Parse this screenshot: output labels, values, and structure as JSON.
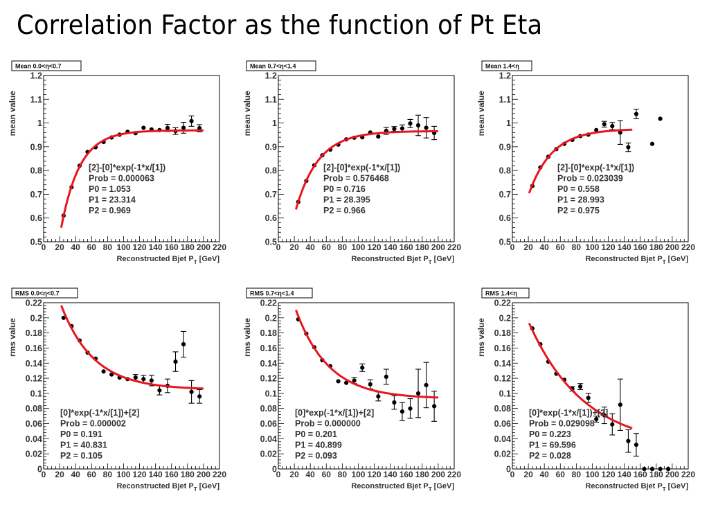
{
  "page_title": "Correlation Factor as the function of Pt Eta",
  "chart_data": [
    {
      "type": "scatter",
      "title": "Mean 0.0<η<0.7",
      "xlabel": "Reconstructed Bjet P_T [GeV]",
      "ylabel": "mean value",
      "xlim": [
        0,
        220
      ],
      "ylim": [
        0.5,
        1.2
      ],
      "xticks": [
        0,
        20,
        40,
        60,
        80,
        100,
        120,
        140,
        160,
        180,
        200,
        220
      ],
      "yticks": [
        "0.5",
        "0.6",
        "0.7",
        "0.8",
        "0.9",
        "1",
        "1.1",
        "1.2"
      ],
      "grid": false,
      "fit": {
        "formula": "[2]-[0]*exp(-1*x/[1])",
        "model": "p2_minus_p0_exp",
        "prob": "0.000063",
        "P0": 1.053,
        "P1": 23.314,
        "P2": 0.969,
        "x_range": [
          22,
          200
        ],
        "stat_lines": [
          "[2]-[0]*exp(-1*x/[1])",
          "Prob  = 0.000063",
          "P0 =  1.053",
          "P1 = 23.314",
          "P2 =  0.969"
        ]
      },
      "points": [
        {
          "x": 25,
          "y": 0.61,
          "err": 0
        },
        {
          "x": 35,
          "y": 0.73,
          "err": 0
        },
        {
          "x": 45,
          "y": 0.82,
          "err": 0
        },
        {
          "x": 55,
          "y": 0.878,
          "err": 0
        },
        {
          "x": 65,
          "y": 0.898,
          "err": 0
        },
        {
          "x": 75,
          "y": 0.92,
          "err": 0
        },
        {
          "x": 85,
          "y": 0.939,
          "err": 0
        },
        {
          "x": 95,
          "y": 0.951,
          "err": 0
        },
        {
          "x": 105,
          "y": 0.963,
          "err": 0
        },
        {
          "x": 115,
          "y": 0.957,
          "err": 0
        },
        {
          "x": 125,
          "y": 0.98,
          "err": 0
        },
        {
          "x": 135,
          "y": 0.973,
          "err": 0
        },
        {
          "x": 145,
          "y": 0.97,
          "err": 0
        },
        {
          "x": 155,
          "y": 0.979,
          "err": 0.015
        },
        {
          "x": 165,
          "y": 0.966,
          "err": 0.014
        },
        {
          "x": 175,
          "y": 0.98,
          "err": 0.023
        },
        {
          "x": 185,
          "y": 1.008,
          "err": 0.022
        },
        {
          "x": 195,
          "y": 0.978,
          "err": 0.015
        }
      ]
    },
    {
      "type": "scatter",
      "title": "Mean 0.7<η<1.4",
      "xlabel": "Reconstructed Bjet P_T [GeV]",
      "ylabel": "mean value",
      "xlim": [
        0,
        220
      ],
      "ylim": [
        0.5,
        1.2
      ],
      "xticks": [
        0,
        20,
        40,
        60,
        80,
        100,
        120,
        140,
        160,
        180,
        200,
        220
      ],
      "yticks": [
        "0.5",
        "0.6",
        "0.7",
        "0.8",
        "0.9",
        "1",
        "1.1",
        "1.2"
      ],
      "grid": false,
      "fit": {
        "formula": "[2]-[0]*exp(-1*x/[1])",
        "model": "p2_minus_p0_exp",
        "prob": "0.576468",
        "P0": 0.716,
        "P1": 28.395,
        "P2": 0.966,
        "x_range": [
          22,
          200
        ],
        "stat_lines": [
          "[2]-[0]*exp(-1*x/[1])",
          "Prob  = 0.576468",
          "P0 =  0.716",
          "P1 = 28.395",
          "P2 =  0.966"
        ]
      },
      "points": [
        {
          "x": 25,
          "y": 0.668,
          "err": 0
        },
        {
          "x": 35,
          "y": 0.756,
          "err": 0
        },
        {
          "x": 45,
          "y": 0.822,
          "err": 0
        },
        {
          "x": 55,
          "y": 0.864,
          "err": 0
        },
        {
          "x": 65,
          "y": 0.888,
          "err": 0
        },
        {
          "x": 75,
          "y": 0.909,
          "err": 0
        },
        {
          "x": 85,
          "y": 0.931,
          "err": 0
        },
        {
          "x": 95,
          "y": 0.938,
          "err": 0
        },
        {
          "x": 105,
          "y": 0.94,
          "err": 0
        },
        {
          "x": 115,
          "y": 0.96,
          "err": 0
        },
        {
          "x": 125,
          "y": 0.943,
          "err": 0
        },
        {
          "x": 135,
          "y": 0.967,
          "err": 0.015
        },
        {
          "x": 145,
          "y": 0.975,
          "err": 0.01
        },
        {
          "x": 155,
          "y": 0.977,
          "err": 0.015
        },
        {
          "x": 165,
          "y": 0.998,
          "err": 0.017
        },
        {
          "x": 175,
          "y": 0.99,
          "err": 0.043
        },
        {
          "x": 185,
          "y": 0.98,
          "err": 0.043
        },
        {
          "x": 195,
          "y": 0.958,
          "err": 0.028
        }
      ]
    },
    {
      "type": "scatter",
      "title": "Mean 1.4<η",
      "xlabel": "Reconstructed Bjet P_T [GeV]",
      "ylabel": "mean value",
      "xlim": [
        0,
        220
      ],
      "ylim": [
        0.5,
        1.2
      ],
      "xticks": [
        0,
        20,
        40,
        60,
        80,
        100,
        120,
        140,
        160,
        180,
        200,
        220
      ],
      "yticks": [
        "0.5",
        "0.6",
        "0.7",
        "0.8",
        "0.9",
        "1",
        "1.1",
        "1.2"
      ],
      "grid": false,
      "fit": {
        "formula": "[2]-[0]*exp(-1*x/[1])",
        "model": "p2_minus_p0_exp",
        "prob": "0.023039",
        "P0": 0.558,
        "P1": 28.993,
        "P2": 0.975,
        "x_range": [
          21,
          150
        ],
        "stat_lines": [
          "[2]-[0]*exp(-1*x/[1])",
          "Prob  = 0.023039",
          "P0 =  0.558",
          "P1 = 28.993",
          "P2 =  0.975"
        ]
      },
      "points": [
        {
          "x": 25,
          "y": 0.735,
          "err": 0
        },
        {
          "x": 35,
          "y": 0.813,
          "err": 0
        },
        {
          "x": 45,
          "y": 0.858,
          "err": 0
        },
        {
          "x": 55,
          "y": 0.89,
          "err": 0
        },
        {
          "x": 65,
          "y": 0.912,
          "err": 0
        },
        {
          "x": 75,
          "y": 0.929,
          "err": 0
        },
        {
          "x": 85,
          "y": 0.945,
          "err": 0
        },
        {
          "x": 95,
          "y": 0.951,
          "err": 0
        },
        {
          "x": 105,
          "y": 0.97,
          "err": 0
        },
        {
          "x": 115,
          "y": 0.995,
          "err": 0.012
        },
        {
          "x": 125,
          "y": 0.987,
          "err": 0.015
        },
        {
          "x": 135,
          "y": 0.96,
          "err": 0.05
        },
        {
          "x": 145,
          "y": 0.898,
          "err": 0.018
        },
        {
          "x": 155,
          "y": 1.038,
          "err": 0.02
        },
        {
          "x": 175,
          "y": 0.912,
          "err": 0
        },
        {
          "x": 185,
          "y": 1.018,
          "err": 0
        }
      ]
    },
    {
      "type": "scatter",
      "title": "RMS 0.0<η<0.7",
      "xlabel": "Reconstructed Bjet P_T [GeV]",
      "ylabel": "rms value",
      "xlim": [
        0,
        220
      ],
      "ylim": [
        0,
        0.22
      ],
      "xticks": [
        0,
        20,
        40,
        60,
        80,
        100,
        120,
        140,
        160,
        180,
        200,
        220
      ],
      "yticks": [
        "0",
        "0.02",
        "0.04",
        "0.06",
        "0.08",
        "0.1",
        "0.12",
        "0.14",
        "0.16",
        "0.18",
        "0.2",
        "0.22"
      ],
      "grid": false,
      "fit": {
        "formula": "[0]*exp(-1*x/[1])+[2]",
        "model": "p0_exp_plus_p2",
        "prob": "0.000002",
        "P0": 0.191,
        "P1": 40.831,
        "P2": 0.105,
        "x_range": [
          22,
          200
        ],
        "stat_lines": [
          "[0]*exp(-1*x/[1])+[2]",
          "Prob  = 0.000002",
          "P0 =  0.191",
          "P1 = 40.831",
          "P2 =  0.105"
        ]
      },
      "points": [
        {
          "x": 25,
          "y": 0.2,
          "err": 0
        },
        {
          "x": 35,
          "y": 0.189,
          "err": 0
        },
        {
          "x": 45,
          "y": 0.17,
          "err": 0
        },
        {
          "x": 55,
          "y": 0.154,
          "err": 0
        },
        {
          "x": 65,
          "y": 0.146,
          "err": 0
        },
        {
          "x": 75,
          "y": 0.129,
          "err": 0
        },
        {
          "x": 85,
          "y": 0.125,
          "err": 0
        },
        {
          "x": 95,
          "y": 0.121,
          "err": 0
        },
        {
          "x": 105,
          "y": 0.119,
          "err": 0
        },
        {
          "x": 115,
          "y": 0.121,
          "err": 0.004
        },
        {
          "x": 125,
          "y": 0.119,
          "err": 0.005
        },
        {
          "x": 135,
          "y": 0.117,
          "err": 0.007
        },
        {
          "x": 145,
          "y": 0.104,
          "err": 0.006
        },
        {
          "x": 155,
          "y": 0.11,
          "err": 0.009
        },
        {
          "x": 165,
          "y": 0.142,
          "err": 0.013
        },
        {
          "x": 175,
          "y": 0.165,
          "err": 0.017
        },
        {
          "x": 185,
          "y": 0.102,
          "err": 0.015
        },
        {
          "x": 195,
          "y": 0.096,
          "err": 0.009
        }
      ]
    },
    {
      "type": "scatter",
      "title": "RMS 0.7<η<1.4",
      "xlabel": "Reconstructed Bjet P_T [GeV]",
      "ylabel": "rms value",
      "xlim": [
        0,
        220
      ],
      "ylim": [
        0,
        0.22
      ],
      "xticks": [
        0,
        20,
        40,
        60,
        80,
        100,
        120,
        140,
        160,
        180,
        200,
        220
      ],
      "yticks": [
        "0",
        "0.02",
        "0.04",
        "0.06",
        "0.08",
        "0.1",
        "0.12",
        "0.14",
        "0.16",
        "0.18",
        "0.2",
        "0.22"
      ],
      "grid": false,
      "fit": {
        "formula": "[0]*exp(-1*x/[1])+[2]",
        "model": "p0_exp_plus_p2",
        "prob": "0.000000",
        "P0": 0.201,
        "P1": 40.899,
        "P2": 0.093,
        "x_range": [
          22,
          200
        ],
        "stat_lines": [
          "[0]*exp(-1*x/[1])+[2]",
          "Prob  = 0.000000",
          "P0 =  0.201",
          "P1 = 40.899",
          "P2 =  0.093"
        ]
      },
      "points": [
        {
          "x": 25,
          "y": 0.198,
          "err": 0
        },
        {
          "x": 35,
          "y": 0.179,
          "err": 0
        },
        {
          "x": 45,
          "y": 0.161,
          "err": 0
        },
        {
          "x": 55,
          "y": 0.144,
          "err": 0
        },
        {
          "x": 65,
          "y": 0.136,
          "err": 0
        },
        {
          "x": 75,
          "y": 0.116,
          "err": 0
        },
        {
          "x": 85,
          "y": 0.114,
          "err": 0
        },
        {
          "x": 95,
          "y": 0.117,
          "err": 0.004
        },
        {
          "x": 105,
          "y": 0.134,
          "err": 0.005
        },
        {
          "x": 115,
          "y": 0.112,
          "err": 0.006
        },
        {
          "x": 125,
          "y": 0.096,
          "err": 0.006
        },
        {
          "x": 135,
          "y": 0.122,
          "err": 0.01
        },
        {
          "x": 145,
          "y": 0.088,
          "err": 0.009
        },
        {
          "x": 155,
          "y": 0.076,
          "err": 0.012
        },
        {
          "x": 165,
          "y": 0.08,
          "err": 0.013
        },
        {
          "x": 175,
          "y": 0.1,
          "err": 0.032
        },
        {
          "x": 185,
          "y": 0.111,
          "err": 0.03
        },
        {
          "x": 195,
          "y": 0.083,
          "err": 0.02
        }
      ]
    },
    {
      "type": "scatter",
      "title": "RMS 1.4<η",
      "xlabel": "Reconstructed Bjet P_T [GeV]",
      "ylabel": "rms value",
      "xlim": [
        0,
        220
      ],
      "ylim": [
        0,
        0.22
      ],
      "xticks": [
        0,
        20,
        40,
        60,
        80,
        100,
        120,
        140,
        160,
        180,
        200,
        220
      ],
      "yticks": [
        "0",
        "0.02",
        "0.04",
        "0.06",
        "0.08",
        "0.1",
        "0.12",
        "0.14",
        "0.16",
        "0.18",
        "0.2",
        "0.22"
      ],
      "grid": false,
      "fit": {
        "formula": "[0]*exp(-1*x/[1])+[2]",
        "model": "p0_exp_plus_p2",
        "prob": "0.029098",
        "P0": 0.223,
        "P1": 69.596,
        "P2": 0.028,
        "x_range": [
          21,
          150
        ],
        "stat_lines": [
          "[0]*exp(-1*x/[1])+[2]",
          "Prob  = 0.029098",
          "P0 =  0.223",
          "P1 = 69.596",
          "P2 =  0.028"
        ]
      },
      "points": [
        {
          "x": 25,
          "y": 0.186,
          "err": 0
        },
        {
          "x": 35,
          "y": 0.165,
          "err": 0
        },
        {
          "x": 45,
          "y": 0.142,
          "err": 0
        },
        {
          "x": 55,
          "y": 0.126,
          "err": 0
        },
        {
          "x": 65,
          "y": 0.118,
          "err": 0
        },
        {
          "x": 75,
          "y": 0.106,
          "err": 0.003
        },
        {
          "x": 85,
          "y": 0.109,
          "err": 0.004
        },
        {
          "x": 95,
          "y": 0.094,
          "err": 0.006
        },
        {
          "x": 105,
          "y": 0.066,
          "err": 0.004
        },
        {
          "x": 115,
          "y": 0.071,
          "err": 0.011
        },
        {
          "x": 125,
          "y": 0.059,
          "err": 0.014
        },
        {
          "x": 135,
          "y": 0.085,
          "err": 0.034
        },
        {
          "x": 145,
          "y": 0.037,
          "err": 0.015
        },
        {
          "x": 155,
          "y": 0.032,
          "err": 0.015
        },
        {
          "x": 165,
          "y": 0.0,
          "err": 0
        },
        {
          "x": 175,
          "y": 0.0,
          "err": 0
        },
        {
          "x": 185,
          "y": 0.0,
          "err": 0
        },
        {
          "x": 195,
          "y": 0.0,
          "err": 0
        }
      ]
    }
  ]
}
